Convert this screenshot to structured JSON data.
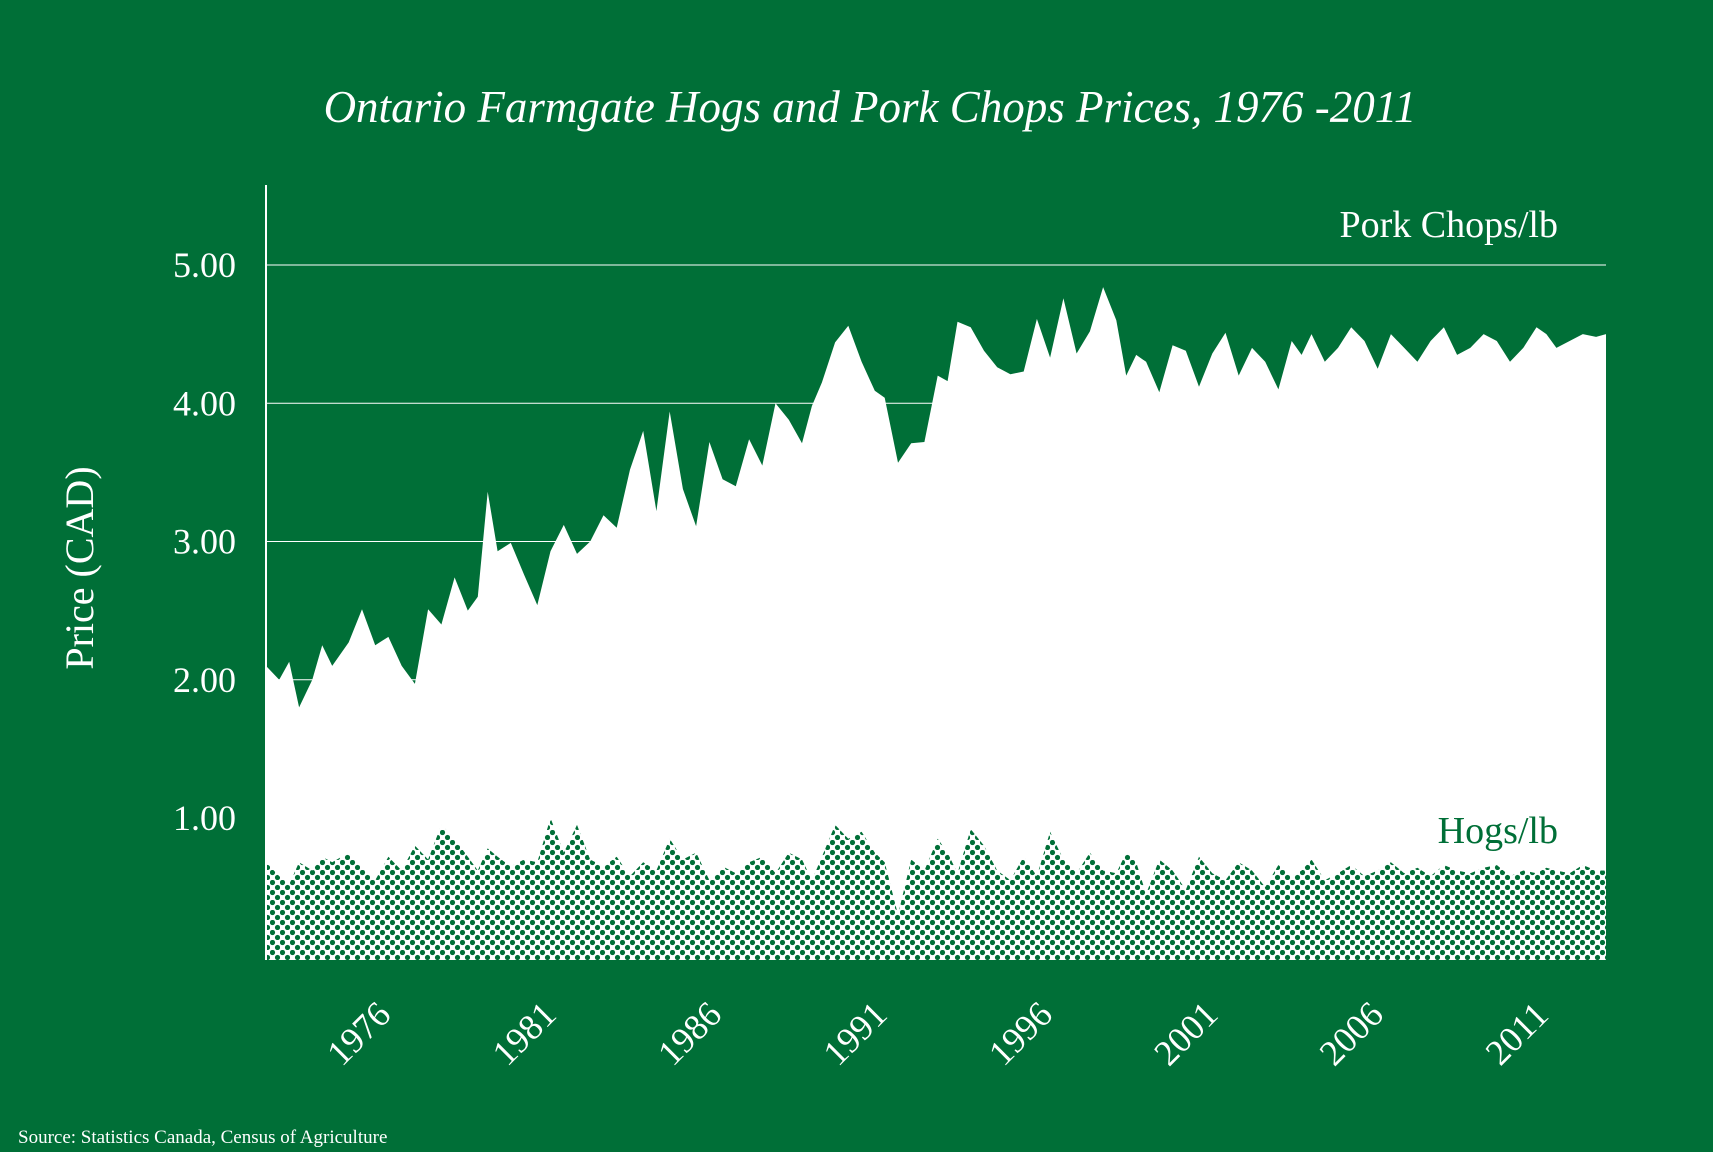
{
  "chart_data": {
    "type": "area",
    "title": "Ontario Farmgate Hogs and Pork Chops Prices, 1976 -2011",
    "ylabel": "Price (CAD)",
    "xlabel": "",
    "source": "Source: Statistics Canada, Census of Agriculture",
    "ylim": [
      0,
      5.6
    ],
    "xlim": [
      1974,
      2014.5
    ],
    "yticks": [
      1,
      2,
      3,
      4,
      5
    ],
    "ytick_labels": [
      "1.00",
      "2.00",
      "3.00",
      "4.00",
      "5.00"
    ],
    "xticks": [
      1976,
      1981,
      1986,
      1991,
      1996,
      2001,
      2006,
      2011
    ],
    "xtick_labels": [
      "1976",
      "1981",
      "1986",
      "1991",
      "1996",
      "2001",
      "2006",
      "2011"
    ],
    "grid": "horizontal",
    "colors": {
      "background": "#006f37",
      "pork_fill": "#ffffff",
      "hogs_pattern": "#006f37"
    },
    "series": [
      {
        "name": "Pork Chops/lb",
        "x": [
          1974,
          1974.4,
          1974.7,
          1975,
          1975.4,
          1975.7,
          1976,
          1976.5,
          1976.9,
          1977.3,
          1977.7,
          1978.1,
          1978.5,
          1978.9,
          1979.3,
          1979.7,
          1980.1,
          1980.4,
          1980.7,
          1981,
          1981.4,
          1981.8,
          1982.2,
          1982.6,
          1983,
          1983.4,
          1983.8,
          1984.2,
          1984.6,
          1985,
          1985.4,
          1985.8,
          1986.2,
          1986.6,
          1987,
          1987.4,
          1987.8,
          1988.2,
          1988.6,
          1989,
          1989.4,
          1989.8,
          1990.2,
          1990.5,
          1990.8,
          1991.2,
          1991.6,
          1992,
          1992.4,
          1992.7,
          1993.1,
          1993.5,
          1993.9,
          1994.3,
          1994.6,
          1994.9,
          1995.3,
          1995.7,
          1996.1,
          1996.5,
          1996.9,
          1997.3,
          1997.7,
          1998.1,
          1998.5,
          1998.9,
          1999.3,
          1999.7,
          2000,
          2000.3,
          2000.6,
          2001,
          2001.4,
          2001.8,
          2002.2,
          2002.6,
          2003,
          2003.4,
          2003.8,
          2004.2,
          2004.6,
          2005,
          2005.3,
          2005.6,
          2006,
          2006.4,
          2006.8,
          2007.2,
          2007.6,
          2008,
          2008.4,
          2008.8,
          2009.2,
          2009.6,
          2010,
          2010.4,
          2010.8,
          2011.2,
          2011.6,
          2012,
          2012.4,
          2012.7,
          2013,
          2013.4,
          2013.8,
          2014.2,
          2014.5
        ],
        "values": [
          2.1,
          2.0,
          2.13,
          1.8,
          2.0,
          2.25,
          2.1,
          2.27,
          2.51,
          2.25,
          2.31,
          2.1,
          1.97,
          2.51,
          2.4,
          2.74,
          2.5,
          2.6,
          3.36,
          2.93,
          2.99,
          2.76,
          2.54,
          2.93,
          3.12,
          2.91,
          3.0,
          3.19,
          3.1,
          3.52,
          3.8,
          3.22,
          3.94,
          3.38,
          3.11,
          3.72,
          3.45,
          3.4,
          3.74,
          3.55,
          4.0,
          3.88,
          3.71,
          3.98,
          4.15,
          4.44,
          4.56,
          4.3,
          4.09,
          4.04,
          3.57,
          3.71,
          3.72,
          4.2,
          4.16,
          4.59,
          4.55,
          4.38,
          4.26,
          4.21,
          4.23,
          4.61,
          4.33,
          4.76,
          4.36,
          4.52,
          4.84,
          4.6,
          4.2,
          4.35,
          4.3,
          4.08,
          4.42,
          4.38,
          4.12,
          4.36,
          4.51,
          4.2,
          4.4,
          4.3,
          4.1,
          4.45,
          4.35,
          4.5,
          4.3,
          4.4,
          4.55,
          4.45,
          4.25,
          4.5,
          4.4,
          4.3,
          4.45,
          4.55,
          4.35,
          4.4,
          4.5,
          4.45,
          4.3,
          4.4,
          4.55,
          4.5,
          4.4,
          4.45,
          4.5,
          4.48,
          4.5
        ]
      },
      {
        "name": "Hogs/lb",
        "x": [
          1974,
          1974.4,
          1974.7,
          1975,
          1975.4,
          1975.7,
          1976,
          1976.5,
          1976.9,
          1977.3,
          1977.7,
          1978.1,
          1978.5,
          1978.9,
          1979.3,
          1979.7,
          1980.1,
          1980.4,
          1980.7,
          1981,
          1981.4,
          1981.8,
          1982.2,
          1982.6,
          1983,
          1983.4,
          1983.8,
          1984.2,
          1984.6,
          1985,
          1985.4,
          1985.8,
          1986.2,
          1986.6,
          1987,
          1987.4,
          1987.8,
          1988.2,
          1988.6,
          1989,
          1989.4,
          1989.8,
          1990.2,
          1990.5,
          1990.8,
          1991.2,
          1991.6,
          1992,
          1992.4,
          1992.7,
          1993.1,
          1993.5,
          1993.9,
          1994.3,
          1994.6,
          1994.9,
          1995.3,
          1995.7,
          1996.1,
          1996.5,
          1996.9,
          1997.3,
          1997.7,
          1998.1,
          1998.5,
          1998.9,
          1999.3,
          1999.7,
          2000,
          2000.3,
          2000.6,
          2001,
          2001.4,
          2001.8,
          2002.2,
          2002.6,
          2003,
          2003.4,
          2003.8,
          2004.2,
          2004.6,
          2005,
          2005.3,
          2005.6,
          2006,
          2006.4,
          2006.8,
          2007.2,
          2007.6,
          2008,
          2008.4,
          2008.8,
          2009.2,
          2009.6,
          2010,
          2010.4,
          2010.8,
          2011.2,
          2011.6,
          2012,
          2012.4,
          2012.7,
          2013,
          2013.4,
          2013.8,
          2014.2,
          2014.5
        ],
        "values": [
          0.68,
          0.58,
          0.52,
          0.68,
          0.62,
          0.72,
          0.68,
          0.75,
          0.65,
          0.55,
          0.72,
          0.62,
          0.8,
          0.7,
          0.95,
          0.85,
          0.72,
          0.62,
          0.78,
          0.72,
          0.65,
          0.7,
          0.68,
          1.0,
          0.75,
          0.95,
          0.7,
          0.65,
          0.72,
          0.58,
          0.68,
          0.62,
          0.85,
          0.7,
          0.75,
          0.55,
          0.65,
          0.6,
          0.68,
          0.72,
          0.6,
          0.75,
          0.7,
          0.55,
          0.72,
          0.95,
          0.85,
          0.9,
          0.75,
          0.68,
          0.3,
          0.7,
          0.62,
          0.85,
          0.75,
          0.6,
          0.92,
          0.8,
          0.62,
          0.55,
          0.72,
          0.58,
          0.9,
          0.7,
          0.6,
          0.75,
          0.62,
          0.6,
          0.75,
          0.68,
          0.45,
          0.7,
          0.62,
          0.48,
          0.72,
          0.6,
          0.55,
          0.68,
          0.62,
          0.5,
          0.66,
          0.58,
          0.62,
          0.7,
          0.55,
          0.6,
          0.66,
          0.58,
          0.62,
          0.68,
          0.6,
          0.64,
          0.58,
          0.66,
          0.62,
          0.6,
          0.64,
          0.66,
          0.58,
          0.62,
          0.6,
          0.64,
          0.62,
          0.6,
          0.66,
          0.62,
          0.62
        ]
      }
    ]
  }
}
